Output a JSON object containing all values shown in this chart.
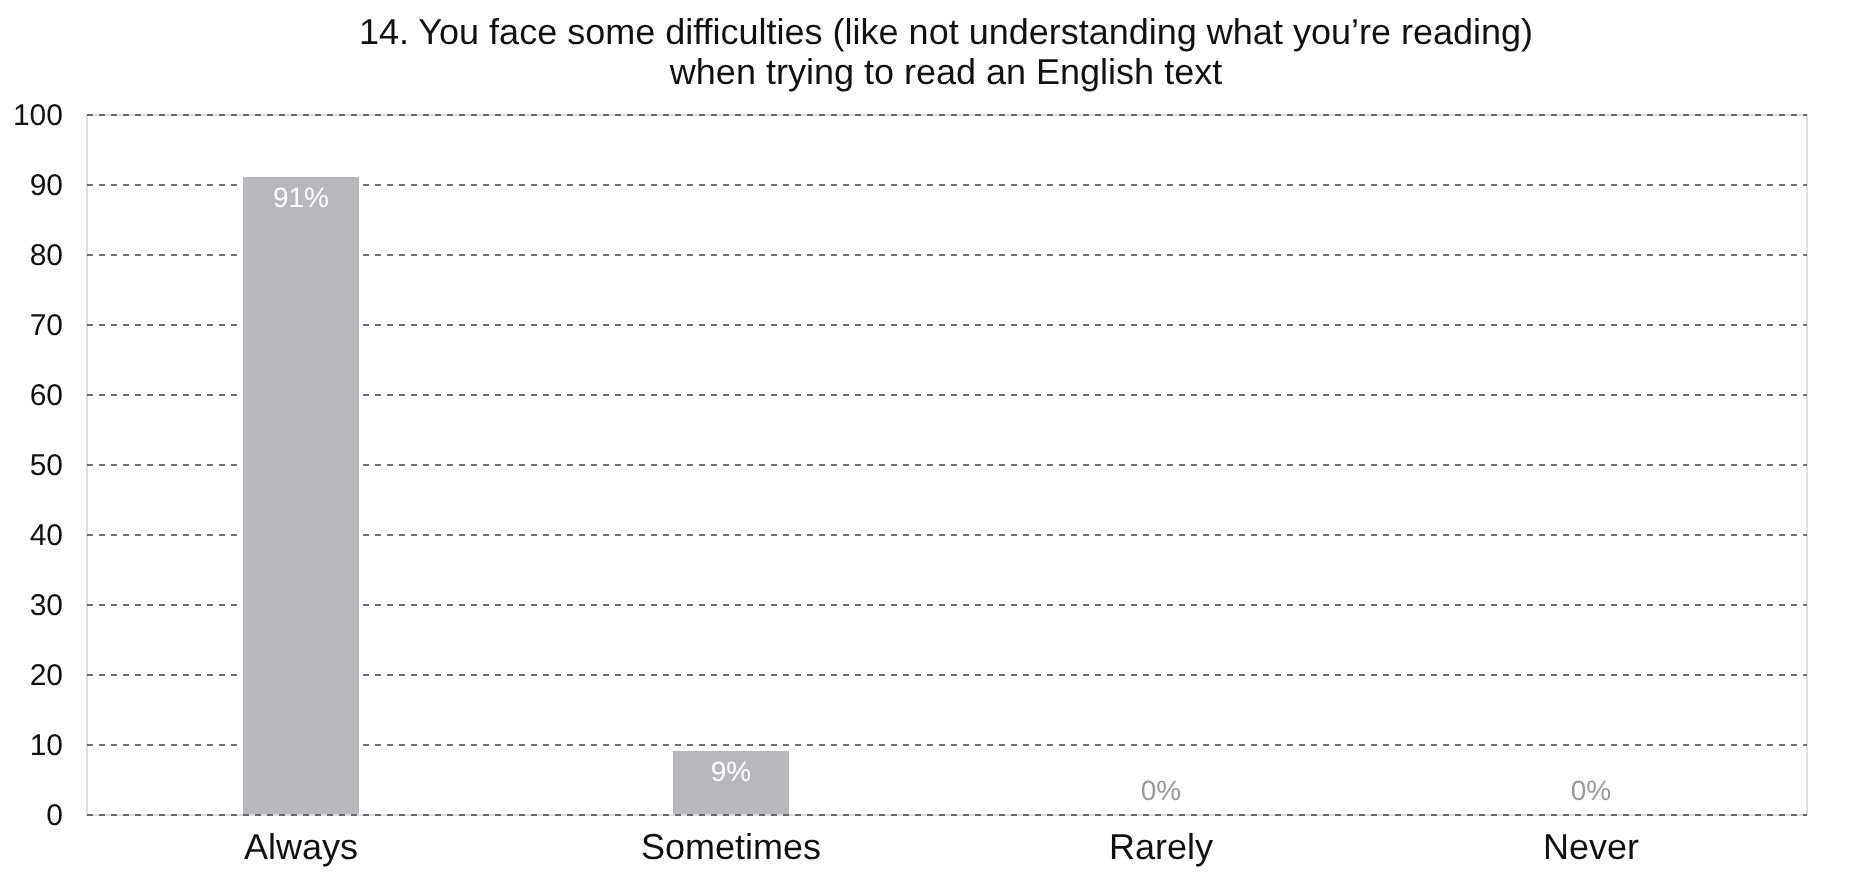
{
  "chart_data": {
    "type": "bar",
    "title": "14. You face some difficulties (like not understanding what you’re reading)\nwhen trying to read an English text",
    "categories": [
      "Always",
      "Sometimes",
      "Rarely",
      "Never"
    ],
    "values": [
      91,
      9,
      0,
      0
    ],
    "value_labels": [
      "91%",
      "9%",
      "0%",
      "0%"
    ],
    "color": "#b8b8bc",
    "ylim": [
      0,
      100
    ],
    "yticks": [
      0,
      10,
      20,
      30,
      40,
      50,
      60,
      70,
      80,
      90,
      100
    ],
    "grid": "y"
  }
}
